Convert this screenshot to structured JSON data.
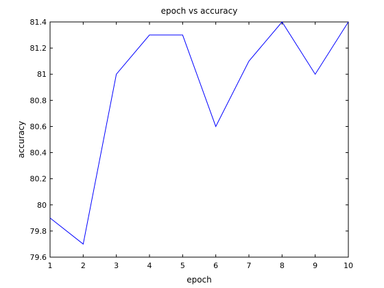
{
  "chart_data": {
    "type": "line",
    "title": "epoch vs accuracy",
    "xlabel": "epoch",
    "ylabel": "accuracy",
    "x": [
      1,
      2,
      3,
      4,
      5,
      6,
      7,
      8,
      9,
      10
    ],
    "series": [
      {
        "values": [
          79.9,
          79.7,
          81.0,
          81.3,
          81.3,
          80.6,
          81.1,
          81.4,
          81.0,
          81.4
        ],
        "color": "#0000ff"
      }
    ],
    "xlim": [
      1,
      10
    ],
    "ylim": [
      79.6,
      81.4
    ],
    "x_ticks": [
      1,
      2,
      3,
      4,
      5,
      6,
      7,
      8,
      9,
      10
    ],
    "y_ticks": [
      79.6,
      79.8,
      80,
      80.2,
      80.4,
      80.6,
      80.8,
      81,
      81.2,
      81.4
    ],
    "x_tick_labels": [
      "1",
      "2",
      "3",
      "4",
      "5",
      "6",
      "7",
      "8",
      "9",
      "10"
    ],
    "y_tick_labels": [
      "79.6",
      "79.8",
      "80",
      "80.2",
      "80.4",
      "80.6",
      "80.8",
      "81",
      "81.2",
      "81.4"
    ],
    "grid": false,
    "legend": "none"
  }
}
